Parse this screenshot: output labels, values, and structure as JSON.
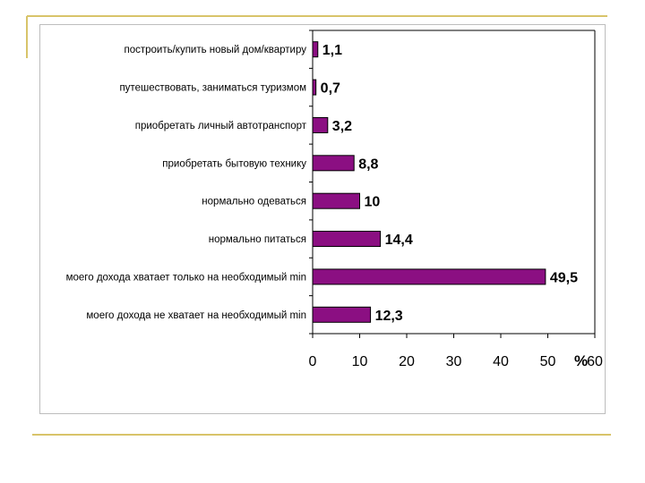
{
  "slide": {
    "accent_color": "#d8c46a"
  },
  "chart_data": {
    "type": "bar",
    "orientation": "horizontal",
    "categories": [
      "построить/купить новый дом/квартиру",
      "путешествовать, заниматься туризмом",
      "приобретать личный автотранспорт",
      "приобретать бытовую технику",
      "нормально одеваться",
      "нормально питаться",
      "моего дохода хватает только на необходимый min",
      "моего дохода не хватает на необходимый min"
    ],
    "values": [
      1.1,
      0.7,
      3.2,
      8.8,
      10,
      14.4,
      49.5,
      12.3
    ],
    "value_labels": [
      "1,1",
      "0,7",
      "3,2",
      "8,8",
      "10",
      "14,4",
      "49,5",
      "12,3"
    ],
    "x_ticks": [
      0,
      10,
      20,
      30,
      40,
      50,
      60
    ],
    "x_tick_labels": [
      "0",
      "10",
      "20",
      "30",
      "40",
      "50",
      "60"
    ],
    "xlim": [
      0,
      60
    ],
    "unit_label": "%",
    "grid": false,
    "bar_color": "#8b0f82"
  }
}
